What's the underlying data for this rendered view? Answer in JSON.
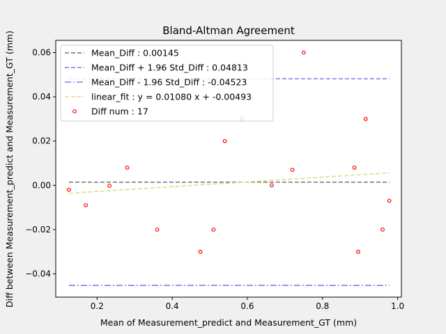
{
  "chart_data": {
    "type": "scatter",
    "title": "Bland-Altman Agreement",
    "xlabel": "Mean of Measurement_predict and Measurement_GT (mm)",
    "ylabel": "Diff between Measurement_predict and Measurement_GT (mm)",
    "xlim": [
      0.09,
      1.01
    ],
    "ylim": [
      -0.0505,
      0.0655
    ],
    "xticks": [
      0.2,
      0.4,
      0.6,
      0.8,
      1.0
    ],
    "xtick_labels": [
      "0.2",
      "0.4",
      "0.6",
      "0.8",
      "1.0"
    ],
    "yticks": [
      -0.04,
      -0.02,
      0.0,
      0.02,
      0.04,
      0.06
    ],
    "ytick_labels": [
      "−0.04",
      "−0.02",
      "0.00",
      "0.02",
      "0.04",
      "0.06"
    ],
    "grid": false,
    "legend_position": "top-left",
    "points": {
      "label": "Diff  num : 17",
      "color": "#ff0000",
      "x": [
        0.125,
        0.17,
        0.233,
        0.28,
        0.36,
        0.475,
        0.51,
        0.54,
        0.585,
        0.665,
        0.72,
        0.75,
        0.885,
        0.895,
        0.915,
        0.96,
        0.978
      ],
      "y": [
        -0.002,
        -0.009,
        -0.0002,
        0.008,
        -0.02,
        -0.03,
        -0.02,
        0.02,
        0.03,
        0.0,
        0.007,
        0.06,
        0.008,
        -0.03,
        0.03,
        -0.02,
        -0.007
      ]
    },
    "lines": [
      {
        "label": "Mean_Diff : 0.00145",
        "kind": "hline",
        "y": 0.00145,
        "x_range": [
          0.125,
          0.978
        ],
        "color": "#707070",
        "dash": "dashed"
      },
      {
        "label": "Mean_Diff + 1.96 Std_Diff : 0.04813",
        "kind": "hline",
        "y": 0.04813,
        "x_range": [
          0.125,
          0.978
        ],
        "color": "#7b7bef",
        "dash": "dashed"
      },
      {
        "label": "Mean_Diff - 1.96 Std_Diff : -0.04523",
        "kind": "hline",
        "y": -0.04523,
        "x_range": [
          0.125,
          0.978
        ],
        "color": "#7b7bef",
        "dash": "dashdot"
      },
      {
        "label": "linear_fit : y = 0.01080 x + -0.00493",
        "kind": "fit",
        "slope": 0.0108,
        "intercept": -0.00493,
        "x_range": [
          0.125,
          0.978
        ],
        "color": "#e3dc85",
        "dash": "dashed"
      }
    ]
  }
}
